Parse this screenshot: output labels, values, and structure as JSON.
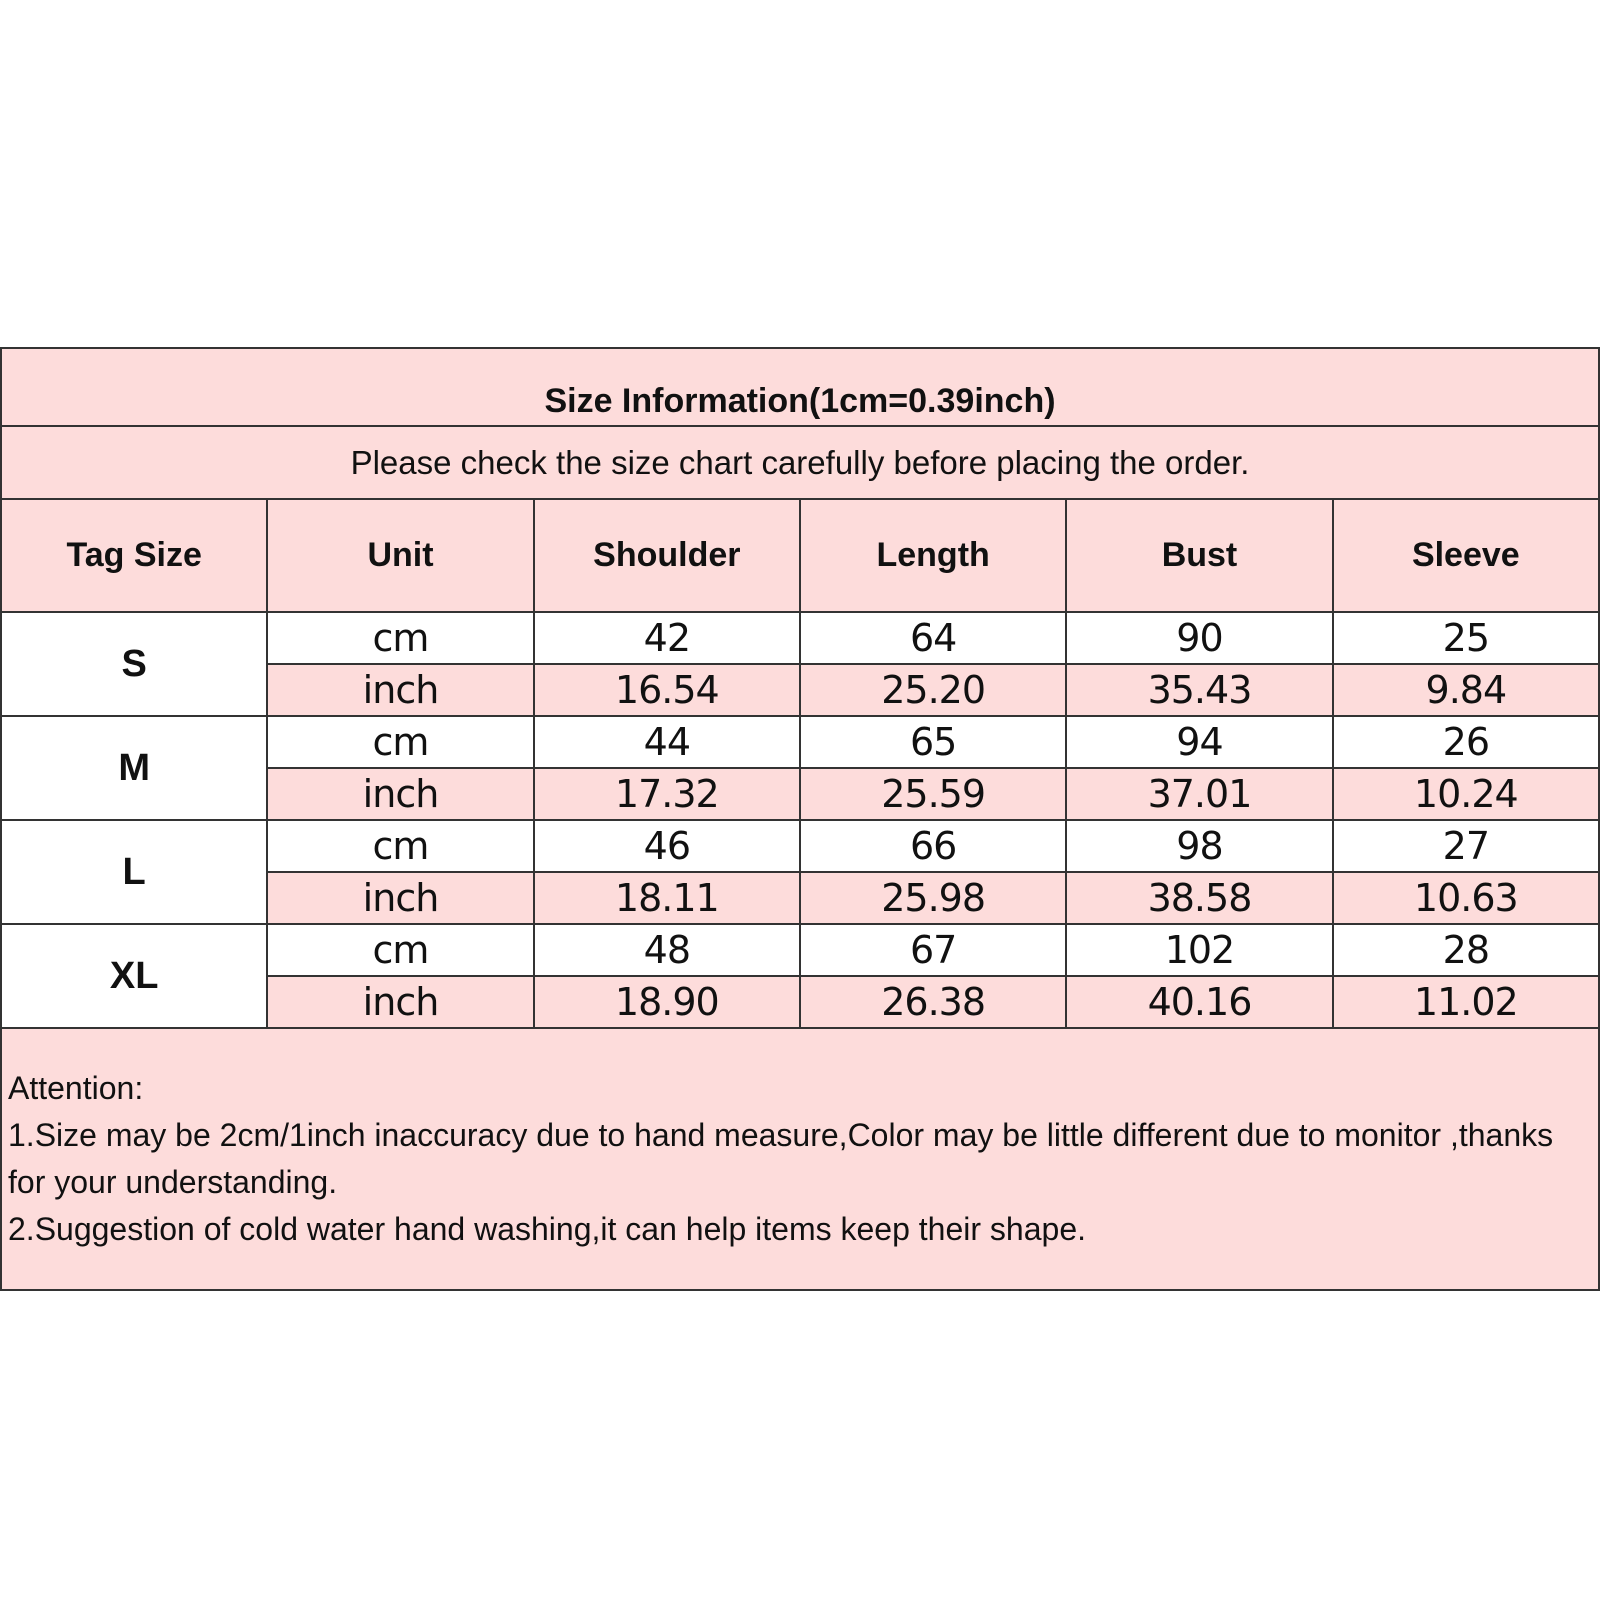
{
  "title": "Size Information(1cm=0.39inch)",
  "subtitle": "Please check the size chart carefully before placing the order.",
  "headers": [
    "Tag Size",
    "Unit",
    "Shoulder",
    "Length",
    "Bust",
    "Sleeve"
  ],
  "rows": [
    {
      "size": "S",
      "cm": [
        "cm",
        "42",
        "64",
        "90",
        "25"
      ],
      "inch": [
        "inch",
        "16.54",
        "25.20",
        "35.43",
        "9.84"
      ]
    },
    {
      "size": "M",
      "cm": [
        "cm",
        "44",
        "65",
        "94",
        "26"
      ],
      "inch": [
        "inch",
        "17.32",
        "25.59",
        "37.01",
        "10.24"
      ]
    },
    {
      "size": "L",
      "cm": [
        "cm",
        "46",
        "66",
        "98",
        "27"
      ],
      "inch": [
        "inch",
        "18.11",
        "25.98",
        "38.58",
        "10.63"
      ]
    },
    {
      "size": "XL",
      "cm": [
        "cm",
        "48",
        "67",
        "102",
        "28"
      ],
      "inch": [
        "inch",
        "18.90",
        "26.38",
        "40.16",
        "11.02"
      ]
    }
  ],
  "attention": {
    "heading": "Attention:",
    "line1": "1.Size may be 2cm/1inch inaccuracy due to hand measure,Color may be little different due to monitor ,thanks for your understanding.",
    "line2": "2.Suggestion of cold water hand washing,it can help items keep their shape."
  },
  "colors": {
    "header_bg": "#fddcdb",
    "row_bg": "#ffffff",
    "border": "#333333"
  }
}
